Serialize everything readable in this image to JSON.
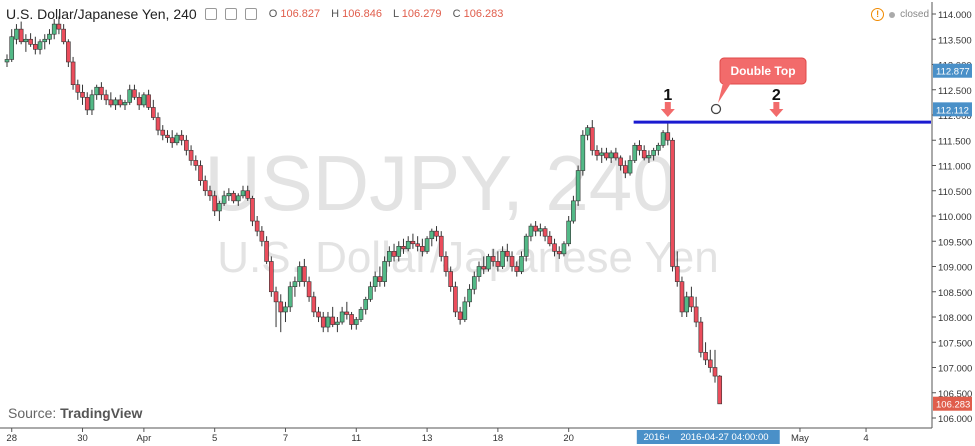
{
  "header": {
    "title": "U.S. Dollar/Japanese Yen, 240",
    "ohlc": [
      {
        "k": "O",
        "v": "106.827"
      },
      {
        "k": "H",
        "v": "106.846"
      },
      {
        "k": "L",
        "v": "106.279"
      },
      {
        "k": "C",
        "v": "106.283"
      }
    ],
    "status": "closed"
  },
  "watermark": {
    "line1": "USDJPY, 240",
    "line2": "U.S. Dollar/Japanese Yen"
  },
  "source": {
    "prefix": "Source: ",
    "name": "TradingView"
  },
  "colors": {
    "up": "#53b987",
    "down": "#eb4d5c",
    "resistance": "#1a1ad0",
    "axis": "#555555",
    "tag": "#4a90c8",
    "last": "#e05d4b",
    "callout": "#f26b6b"
  },
  "chart_data": {
    "type": "candlestick",
    "ylim": [
      106.0,
      114.25
    ],
    "y_ticks": [
      "114.000",
      "113.500",
      "113.000",
      "112.500",
      "112.000",
      "111.500",
      "111.000",
      "110.500",
      "110.000",
      "109.500",
      "109.000",
      "108.500",
      "108.000",
      "107.500",
      "107.000",
      "106.500",
      "106.000"
    ],
    "x_ticks": [
      {
        "label": "28",
        "i": 1
      },
      {
        "label": "30",
        "i": 16
      },
      {
        "label": "Apr",
        "i": 29
      },
      {
        "label": "5",
        "i": 44
      },
      {
        "label": "7",
        "i": 59
      },
      {
        "label": "11",
        "i": 74
      },
      {
        "label": "13",
        "i": 89
      },
      {
        "label": "18",
        "i": 104
      },
      {
        "label": "20",
        "i": 119
      },
      {
        "label": "May",
        "i": 168
      },
      {
        "label": "4",
        "i": 182
      }
    ],
    "price_tags": [
      {
        "value": 112.877,
        "label": "112.877",
        "kind": "mark"
      },
      {
        "value": 112.112,
        "label": "112.112",
        "kind": "mark"
      },
      {
        "value": 106.283,
        "label": "106.283",
        "kind": "last"
      }
    ],
    "time_tags": [
      {
        "label": "2016-04-25",
        "i": 140
      },
      {
        "label": "2016-04-27 04:00:00",
        "i": 152
      }
    ],
    "resistance": {
      "value": 111.86,
      "from_i": 137
    },
    "annotations": {
      "callout": "Double Top",
      "markers": [
        {
          "label": "1",
          "i": 140
        },
        {
          "label": "2",
          "i": 163
        }
      ]
    },
    "series": [
      {
        "o": 113.05,
        "h": 113.2,
        "l": 112.95,
        "c": 113.1
      },
      {
        "o": 113.1,
        "h": 113.7,
        "l": 113.05,
        "c": 113.55
      },
      {
        "o": 113.5,
        "h": 113.8,
        "l": 113.4,
        "c": 113.7
      },
      {
        "o": 113.7,
        "h": 113.85,
        "l": 113.4,
        "c": 113.45
      },
      {
        "o": 113.45,
        "h": 113.6,
        "l": 113.25,
        "c": 113.5
      },
      {
        "o": 113.5,
        "h": 113.62,
        "l": 113.35,
        "c": 113.4
      },
      {
        "o": 113.4,
        "h": 113.55,
        "l": 113.2,
        "c": 113.3
      },
      {
        "o": 113.3,
        "h": 113.5,
        "l": 113.2,
        "c": 113.45
      },
      {
        "o": 113.45,
        "h": 113.6,
        "l": 113.3,
        "c": 113.5
      },
      {
        "o": 113.5,
        "h": 113.7,
        "l": 113.4,
        "c": 113.6
      },
      {
        "o": 113.6,
        "h": 113.9,
        "l": 113.5,
        "c": 113.8
      },
      {
        "o": 113.8,
        "h": 113.95,
        "l": 113.6,
        "c": 113.7
      },
      {
        "o": 113.7,
        "h": 113.8,
        "l": 113.4,
        "c": 113.45
      },
      {
        "o": 113.45,
        "h": 113.5,
        "l": 112.95,
        "c": 113.05
      },
      {
        "o": 113.05,
        "h": 113.15,
        "l": 112.5,
        "c": 112.6
      },
      {
        "o": 112.6,
        "h": 112.7,
        "l": 112.3,
        "c": 112.45
      },
      {
        "o": 112.45,
        "h": 112.6,
        "l": 112.2,
        "c": 112.35
      },
      {
        "o": 112.35,
        "h": 112.45,
        "l": 112.0,
        "c": 112.1
      },
      {
        "o": 112.1,
        "h": 112.5,
        "l": 112.0,
        "c": 112.4
      },
      {
        "o": 112.4,
        "h": 112.6,
        "l": 112.3,
        "c": 112.55
      },
      {
        "o": 112.55,
        "h": 112.65,
        "l": 112.3,
        "c": 112.4
      },
      {
        "o": 112.4,
        "h": 112.5,
        "l": 112.2,
        "c": 112.3
      },
      {
        "o": 112.3,
        "h": 112.45,
        "l": 112.15,
        "c": 112.2
      },
      {
        "o": 112.2,
        "h": 112.35,
        "l": 112.1,
        "c": 112.3
      },
      {
        "o": 112.3,
        "h": 112.4,
        "l": 112.15,
        "c": 112.2
      },
      {
        "o": 112.2,
        "h": 112.3,
        "l": 112.1,
        "c": 112.25
      },
      {
        "o": 112.25,
        "h": 112.6,
        "l": 112.2,
        "c": 112.5
      },
      {
        "o": 112.5,
        "h": 112.6,
        "l": 112.3,
        "c": 112.35
      },
      {
        "o": 112.35,
        "h": 112.45,
        "l": 112.1,
        "c": 112.2
      },
      {
        "o": 112.2,
        "h": 112.45,
        "l": 112.15,
        "c": 112.4
      },
      {
        "o": 112.4,
        "h": 112.5,
        "l": 112.1,
        "c": 112.15
      },
      {
        "o": 112.15,
        "h": 112.3,
        "l": 111.9,
        "c": 111.95
      },
      {
        "o": 111.95,
        "h": 112.05,
        "l": 111.6,
        "c": 111.7
      },
      {
        "o": 111.7,
        "h": 111.8,
        "l": 111.5,
        "c": 111.6
      },
      {
        "o": 111.6,
        "h": 111.7,
        "l": 111.45,
        "c": 111.55
      },
      {
        "o": 111.55,
        "h": 111.7,
        "l": 111.35,
        "c": 111.45
      },
      {
        "o": 111.45,
        "h": 111.65,
        "l": 111.4,
        "c": 111.6
      },
      {
        "o": 111.6,
        "h": 111.7,
        "l": 111.4,
        "c": 111.5
      },
      {
        "o": 111.5,
        "h": 111.6,
        "l": 111.2,
        "c": 111.3
      },
      {
        "o": 111.3,
        "h": 111.4,
        "l": 111.0,
        "c": 111.1
      },
      {
        "o": 111.1,
        "h": 111.2,
        "l": 110.9,
        "c": 111.0
      },
      {
        "o": 111.0,
        "h": 111.1,
        "l": 110.6,
        "c": 110.7
      },
      {
        "o": 110.7,
        "h": 110.8,
        "l": 110.4,
        "c": 110.5
      },
      {
        "o": 110.5,
        "h": 110.6,
        "l": 110.3,
        "c": 110.4
      },
      {
        "o": 110.4,
        "h": 110.5,
        "l": 110.0,
        "c": 110.1
      },
      {
        "o": 110.1,
        "h": 110.3,
        "l": 109.9,
        "c": 110.25
      },
      {
        "o": 110.25,
        "h": 110.5,
        "l": 110.2,
        "c": 110.4
      },
      {
        "o": 110.4,
        "h": 110.55,
        "l": 110.3,
        "c": 110.45
      },
      {
        "o": 110.45,
        "h": 110.5,
        "l": 110.25,
        "c": 110.3
      },
      {
        "o": 110.3,
        "h": 110.45,
        "l": 110.2,
        "c": 110.4
      },
      {
        "o": 110.4,
        "h": 110.6,
        "l": 110.35,
        "c": 110.5
      },
      {
        "o": 110.5,
        "h": 110.6,
        "l": 110.3,
        "c": 110.35
      },
      {
        "o": 110.35,
        "h": 110.4,
        "l": 109.8,
        "c": 109.9
      },
      {
        "o": 109.9,
        "h": 110.0,
        "l": 109.6,
        "c": 109.7
      },
      {
        "o": 109.7,
        "h": 109.8,
        "l": 109.4,
        "c": 109.5
      },
      {
        "o": 109.5,
        "h": 109.6,
        "l": 109.05,
        "c": 109.1
      },
      {
        "o": 109.1,
        "h": 109.2,
        "l": 108.4,
        "c": 108.5
      },
      {
        "o": 108.5,
        "h": 108.6,
        "l": 107.8,
        "c": 108.3
      },
      {
        "o": 108.3,
        "h": 108.45,
        "l": 107.7,
        "c": 108.1
      },
      {
        "o": 108.1,
        "h": 108.3,
        "l": 107.9,
        "c": 108.2
      },
      {
        "o": 108.2,
        "h": 108.7,
        "l": 108.1,
        "c": 108.6
      },
      {
        "o": 108.6,
        "h": 108.8,
        "l": 108.4,
        "c": 108.7
      },
      {
        "o": 108.7,
        "h": 109.1,
        "l": 108.6,
        "c": 109.0
      },
      {
        "o": 109.0,
        "h": 109.15,
        "l": 108.6,
        "c": 108.7
      },
      {
        "o": 108.7,
        "h": 108.8,
        "l": 108.3,
        "c": 108.4
      },
      {
        "o": 108.4,
        "h": 108.5,
        "l": 108.0,
        "c": 108.1
      },
      {
        "o": 108.1,
        "h": 108.2,
        "l": 107.9,
        "c": 108.0
      },
      {
        "o": 108.0,
        "h": 108.1,
        "l": 107.7,
        "c": 107.8
      },
      {
        "o": 107.8,
        "h": 108.1,
        "l": 107.7,
        "c": 108.0
      },
      {
        "o": 108.0,
        "h": 108.2,
        "l": 107.8,
        "c": 107.85
      },
      {
        "o": 107.85,
        "h": 108.0,
        "l": 107.7,
        "c": 107.9
      },
      {
        "o": 107.9,
        "h": 108.2,
        "l": 107.85,
        "c": 108.1
      },
      {
        "o": 108.1,
        "h": 108.3,
        "l": 107.95,
        "c": 108.05
      },
      {
        "o": 108.05,
        "h": 108.1,
        "l": 107.75,
        "c": 107.85
      },
      {
        "o": 107.85,
        "h": 108.0,
        "l": 107.75,
        "c": 107.95
      },
      {
        "o": 107.95,
        "h": 108.2,
        "l": 107.9,
        "c": 108.15
      },
      {
        "o": 108.15,
        "h": 108.4,
        "l": 108.05,
        "c": 108.35
      },
      {
        "o": 108.35,
        "h": 108.7,
        "l": 108.3,
        "c": 108.6
      },
      {
        "o": 108.6,
        "h": 108.9,
        "l": 108.5,
        "c": 108.8
      },
      {
        "o": 108.8,
        "h": 109.0,
        "l": 108.6,
        "c": 108.7
      },
      {
        "o": 108.7,
        "h": 109.2,
        "l": 108.6,
        "c": 109.1
      },
      {
        "o": 109.1,
        "h": 109.4,
        "l": 109.0,
        "c": 109.3
      },
      {
        "o": 109.3,
        "h": 109.45,
        "l": 109.1,
        "c": 109.2
      },
      {
        "o": 109.2,
        "h": 109.5,
        "l": 109.1,
        "c": 109.4
      },
      {
        "o": 109.4,
        "h": 109.55,
        "l": 109.25,
        "c": 109.35
      },
      {
        "o": 109.35,
        "h": 109.6,
        "l": 109.3,
        "c": 109.5
      },
      {
        "o": 109.5,
        "h": 109.65,
        "l": 109.35,
        "c": 109.45
      },
      {
        "o": 109.45,
        "h": 109.6,
        "l": 109.3,
        "c": 109.4
      },
      {
        "o": 109.4,
        "h": 109.55,
        "l": 109.2,
        "c": 109.3
      },
      {
        "o": 109.3,
        "h": 109.6,
        "l": 109.25,
        "c": 109.55
      },
      {
        "o": 109.55,
        "h": 109.75,
        "l": 109.4,
        "c": 109.7
      },
      {
        "o": 109.7,
        "h": 109.8,
        "l": 109.5,
        "c": 109.6
      },
      {
        "o": 109.6,
        "h": 109.7,
        "l": 109.1,
        "c": 109.2
      },
      {
        "o": 109.2,
        "h": 109.3,
        "l": 108.8,
        "c": 108.9
      },
      {
        "o": 108.9,
        "h": 109.0,
        "l": 108.5,
        "c": 108.6
      },
      {
        "o": 108.6,
        "h": 108.7,
        "l": 108.0,
        "c": 108.1
      },
      {
        "o": 108.1,
        "h": 108.2,
        "l": 107.85,
        "c": 107.95
      },
      {
        "o": 107.95,
        "h": 108.4,
        "l": 107.9,
        "c": 108.3
      },
      {
        "o": 108.3,
        "h": 108.65,
        "l": 108.2,
        "c": 108.55
      },
      {
        "o": 108.55,
        "h": 108.9,
        "l": 108.45,
        "c": 108.8
      },
      {
        "o": 108.8,
        "h": 109.1,
        "l": 108.7,
        "c": 109.0
      },
      {
        "o": 109.0,
        "h": 109.2,
        "l": 108.85,
        "c": 108.95
      },
      {
        "o": 108.95,
        "h": 109.25,
        "l": 108.9,
        "c": 109.2
      },
      {
        "o": 109.2,
        "h": 109.35,
        "l": 109.0,
        "c": 109.1
      },
      {
        "o": 109.1,
        "h": 109.3,
        "l": 108.9,
        "c": 109.0
      },
      {
        "o": 109.0,
        "h": 109.4,
        "l": 108.95,
        "c": 109.3
      },
      {
        "o": 109.3,
        "h": 109.45,
        "l": 109.1,
        "c": 109.2
      },
      {
        "o": 109.2,
        "h": 109.3,
        "l": 108.9,
        "c": 109.0
      },
      {
        "o": 109.0,
        "h": 109.1,
        "l": 108.8,
        "c": 108.9
      },
      {
        "o": 108.9,
        "h": 109.3,
        "l": 108.85,
        "c": 109.2
      },
      {
        "o": 109.2,
        "h": 109.65,
        "l": 109.1,
        "c": 109.6
      },
      {
        "o": 109.6,
        "h": 109.85,
        "l": 109.5,
        "c": 109.8
      },
      {
        "o": 109.8,
        "h": 109.9,
        "l": 109.6,
        "c": 109.7
      },
      {
        "o": 109.7,
        "h": 109.85,
        "l": 109.6,
        "c": 109.75
      },
      {
        "o": 109.75,
        "h": 109.8,
        "l": 109.5,
        "c": 109.6
      },
      {
        "o": 109.6,
        "h": 109.7,
        "l": 109.4,
        "c": 109.45
      },
      {
        "o": 109.45,
        "h": 109.55,
        "l": 109.2,
        "c": 109.3
      },
      {
        "o": 109.3,
        "h": 109.4,
        "l": 109.15,
        "c": 109.25
      },
      {
        "o": 109.25,
        "h": 109.5,
        "l": 109.2,
        "c": 109.45
      },
      {
        "o": 109.45,
        "h": 110.0,
        "l": 109.4,
        "c": 109.9
      },
      {
        "o": 109.9,
        "h": 110.4,
        "l": 109.85,
        "c": 110.3
      },
      {
        "o": 110.3,
        "h": 111.0,
        "l": 110.2,
        "c": 110.9
      },
      {
        "o": 110.9,
        "h": 111.7,
        "l": 110.8,
        "c": 111.6
      },
      {
        "o": 111.6,
        "h": 111.8,
        "l": 111.5,
        "c": 111.75
      },
      {
        "o": 111.75,
        "h": 111.9,
        "l": 111.2,
        "c": 111.3
      },
      {
        "o": 111.3,
        "h": 111.4,
        "l": 111.1,
        "c": 111.2
      },
      {
        "o": 111.2,
        "h": 111.35,
        "l": 111.05,
        "c": 111.25
      },
      {
        "o": 111.25,
        "h": 111.35,
        "l": 111.1,
        "c": 111.15
      },
      {
        "o": 111.15,
        "h": 111.3,
        "l": 111.05,
        "c": 111.25
      },
      {
        "o": 111.25,
        "h": 111.35,
        "l": 111.1,
        "c": 111.15
      },
      {
        "o": 111.15,
        "h": 111.2,
        "l": 110.9,
        "c": 111.0
      },
      {
        "o": 111.0,
        "h": 111.1,
        "l": 110.75,
        "c": 110.85
      },
      {
        "o": 110.85,
        "h": 111.2,
        "l": 110.8,
        "c": 111.1
      },
      {
        "o": 111.1,
        "h": 111.45,
        "l": 111.05,
        "c": 111.4
      },
      {
        "o": 111.4,
        "h": 111.5,
        "l": 111.2,
        "c": 111.3
      },
      {
        "o": 111.3,
        "h": 111.4,
        "l": 111.1,
        "c": 111.15
      },
      {
        "o": 111.15,
        "h": 111.3,
        "l": 111.05,
        "c": 111.2
      },
      {
        "o": 111.2,
        "h": 111.35,
        "l": 111.1,
        "c": 111.3
      },
      {
        "o": 111.3,
        "h": 111.45,
        "l": 111.2,
        "c": 111.4
      },
      {
        "o": 111.4,
        "h": 111.7,
        "l": 111.35,
        "c": 111.65
      },
      {
        "o": 111.65,
        "h": 111.88,
        "l": 111.4,
        "c": 111.5
      },
      {
        "o": 111.5,
        "h": 111.55,
        "l": 108.9,
        "c": 109.0
      },
      {
        "o": 109.0,
        "h": 109.3,
        "l": 108.6,
        "c": 108.7
      },
      {
        "o": 108.7,
        "h": 108.8,
        "l": 108.0,
        "c": 108.1
      },
      {
        "o": 108.1,
        "h": 108.5,
        "l": 108.0,
        "c": 108.4
      },
      {
        "o": 108.4,
        "h": 108.6,
        "l": 108.1,
        "c": 108.2
      },
      {
        "o": 108.2,
        "h": 108.4,
        "l": 107.8,
        "c": 107.9
      },
      {
        "o": 107.9,
        "h": 108.0,
        "l": 107.2,
        "c": 107.3
      },
      {
        "o": 107.3,
        "h": 107.5,
        "l": 107.05,
        "c": 107.15
      },
      {
        "o": 107.15,
        "h": 107.35,
        "l": 106.9,
        "c": 107.0
      },
      {
        "o": 107.0,
        "h": 107.35,
        "l": 106.7,
        "c": 106.83
      },
      {
        "o": 106.83,
        "h": 106.85,
        "l": 106.28,
        "c": 106.28
      }
    ]
  }
}
